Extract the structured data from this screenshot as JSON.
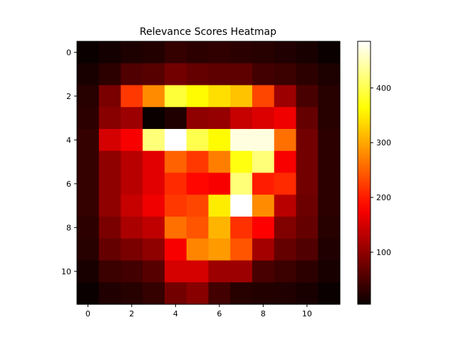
{
  "chart_data": {
    "type": "heatmap",
    "title": "Relevance Scores Heatmap",
    "xlabel": "",
    "ylabel": "",
    "colormap": "hot",
    "x_ticks": [
      0,
      2,
      4,
      6,
      8,
      10
    ],
    "y_ticks": [
      0,
      2,
      4,
      6,
      8,
      10
    ],
    "colorbar": {
      "vmin": 5,
      "vmax": 485,
      "ticks": [
        100,
        200,
        300,
        400
      ]
    },
    "values": [
      [
        5,
        12,
        18,
        22,
        35,
        30,
        32,
        28,
        25,
        20,
        15,
        8
      ],
      [
        15,
        30,
        55,
        60,
        80,
        70,
        65,
        65,
        45,
        40,
        30,
        18
      ],
      [
        25,
        85,
        220,
        280,
        390,
        360,
        340,
        320,
        230,
        110,
        50,
        25
      ],
      [
        30,
        95,
        110,
        5,
        20,
        100,
        105,
        140,
        155,
        170,
        70,
        25
      ],
      [
        35,
        150,
        175,
        420,
        485,
        400,
        360,
        470,
        470,
        260,
        80,
        30
      ],
      [
        35,
        100,
        130,
        160,
        250,
        220,
        270,
        370,
        420,
        175,
        80,
        30
      ],
      [
        35,
        100,
        130,
        160,
        210,
        185,
        175,
        420,
        200,
        210,
        80,
        30
      ],
      [
        35,
        100,
        140,
        170,
        220,
        230,
        350,
        485,
        280,
        130,
        75,
        30
      ],
      [
        30,
        85,
        120,
        135,
        260,
        240,
        310,
        215,
        180,
        90,
        70,
        25
      ],
      [
        25,
        70,
        85,
        100,
        175,
        275,
        290,
        240,
        115,
        70,
        55,
        20
      ],
      [
        15,
        40,
        45,
        60,
        150,
        150,
        110,
        110,
        50,
        40,
        30,
        15
      ],
      [
        8,
        20,
        25,
        35,
        80,
        95,
        45,
        25,
        22,
        20,
        15,
        5
      ]
    ]
  }
}
